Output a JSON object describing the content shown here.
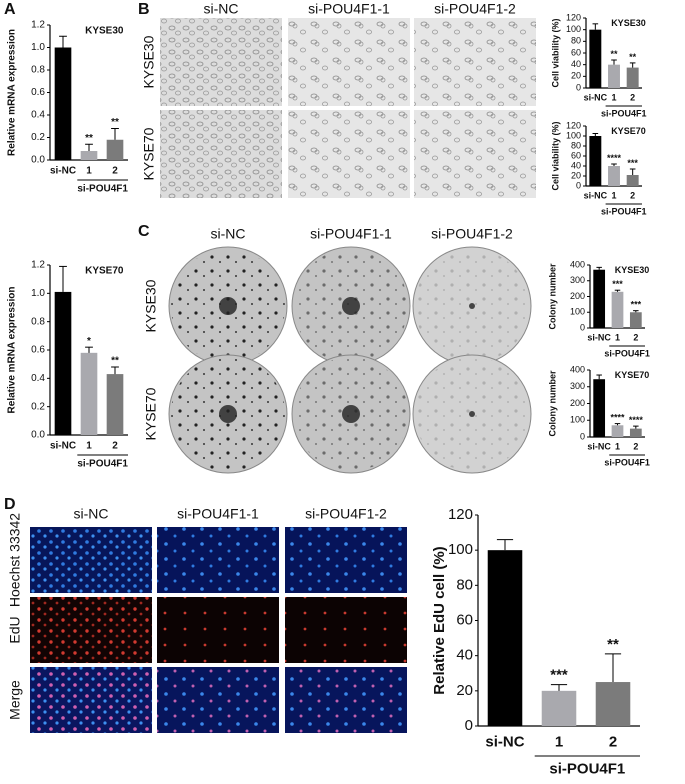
{
  "figure": {
    "panel_labels": [
      "A",
      "B",
      "C",
      "D"
    ],
    "B": {
      "columns": [
        "si-NC",
        "si-POU4F1-1",
        "si-POU4F1-2"
      ],
      "rows": [
        "KYSE30",
        "KYSE70"
      ]
    },
    "C": {
      "columns": [
        "si-NC",
        "si-POU4F1-1",
        "si-POU4F1-2"
      ],
      "rows": [
        "KYSE30",
        "KYSE70"
      ]
    },
    "D": {
      "columns": [
        "si-NC",
        "si-POU4F1-1",
        "si-POU4F1-2"
      ],
      "rows": [
        "Hoechst 33342",
        "EdU",
        "Merge"
      ]
    }
  },
  "chart_data": [
    {
      "type": "bar",
      "title": "KYSE30",
      "y_label": "Relative mRNA expression",
      "categories": [
        "si-NC",
        "1",
        "2"
      ],
      "group_label": "si-POU4F1",
      "values": [
        1.0,
        0.08,
        0.18
      ],
      "errors": [
        0.1,
        0.06,
        0.1
      ],
      "significance": [
        null,
        "**",
        "**"
      ],
      "colors": [
        "#000000",
        "#a9a9ae",
        "#7b7b7b"
      ],
      "ylim": [
        0,
        1.2
      ],
      "yticks": [
        {
          "value": 0,
          "label": "0.0"
        },
        0.2,
        0.4,
        0.6,
        0.8,
        {
          "value": 1,
          "label": "1.0"
        },
        1.2
      ]
    },
    {
      "type": "bar",
      "title": "KYSE70",
      "y_label": "Relative mRNA expression",
      "categories": [
        "si-NC",
        "1",
        "2"
      ],
      "group_label": "si-POU4F1",
      "values": [
        1.01,
        0.58,
        0.43
      ],
      "errors": [
        0.18,
        0.04,
        0.05
      ],
      "significance": [
        null,
        "*",
        "**"
      ],
      "colors": [
        "#000000",
        "#a9a9ae",
        "#7b7b7b"
      ],
      "ylim": [
        0,
        1.2
      ],
      "yticks": [
        {
          "value": 0,
          "label": "0.0"
        },
        0.2,
        0.4,
        0.6,
        0.8,
        {
          "value": 1,
          "label": "1.0"
        },
        1.2
      ]
    },
    {
      "type": "bar",
      "title": "KYSE30",
      "y_label": "Cell viability (%)",
      "categories": [
        "si-NC",
        "1",
        "2"
      ],
      "group_label": "si-POU4F1",
      "values": [
        100,
        40,
        35
      ],
      "errors": [
        10,
        8,
        8
      ],
      "significance": [
        null,
        "**",
        "**"
      ],
      "colors": [
        "#000000",
        "#a9a9ae",
        "#7b7b7b"
      ],
      "ylim": [
        0,
        120
      ],
      "yticks": [
        0,
        20,
        40,
        60,
        80,
        100,
        120
      ]
    },
    {
      "type": "bar",
      "title": "KYSE70",
      "y_label": "Cell viability (%)",
      "categories": [
        "si-NC",
        "1",
        "2"
      ],
      "group_label": "si-POU4F1",
      "values": [
        100,
        40,
        22
      ],
      "errors": [
        5,
        4,
        12
      ],
      "significance": [
        null,
        "****",
        "***"
      ],
      "colors": [
        "#000000",
        "#a9a9ae",
        "#7b7b7b"
      ],
      "ylim": [
        0,
        120
      ],
      "yticks": [
        0,
        20,
        40,
        60,
        80,
        100,
        120
      ]
    },
    {
      "type": "bar",
      "title": "KYSE30",
      "y_label": "Colony number",
      "categories": [
        "si-NC",
        "1",
        "2"
      ],
      "group_label": "si-POU4F1",
      "values": [
        370,
        230,
        100
      ],
      "errors": [
        15,
        10,
        10
      ],
      "significance": [
        null,
        "***",
        "***"
      ],
      "colors": [
        "#000000",
        "#a9a9ae",
        "#7b7b7b"
      ],
      "ylim": [
        0,
        400
      ],
      "yticks": [
        0,
        100,
        200,
        300,
        400
      ]
    },
    {
      "type": "bar",
      "title": "KYSE70",
      "y_label": "Colony number",
      "categories": [
        "si-NC",
        "1",
        "2"
      ],
      "group_label": "si-POU4F1",
      "values": [
        345,
        70,
        50
      ],
      "errors": [
        25,
        10,
        15
      ],
      "significance": [
        null,
        "****",
        "****"
      ],
      "colors": [
        "#000000",
        "#a9a9ae",
        "#7b7b7b"
      ],
      "ylim": [
        0,
        400
      ],
      "yticks": [
        0,
        100,
        200,
        300,
        400
      ]
    },
    {
      "type": "bar",
      "y_label": "Relative EdU cell (%)",
      "categories": [
        "si-NC",
        "1",
        "2"
      ],
      "group_label": "si-POU4F1",
      "values": [
        100,
        20,
        25
      ],
      "errors": [
        6,
        3.5,
        16
      ],
      "significance": [
        null,
        "***",
        "**"
      ],
      "colors": [
        "#000000",
        "#a9a9ae",
        "#7b7b7b"
      ],
      "ylim": [
        0,
        120
      ],
      "yticks": [
        0,
        20,
        40,
        60,
        80,
        100,
        120
      ]
    }
  ]
}
